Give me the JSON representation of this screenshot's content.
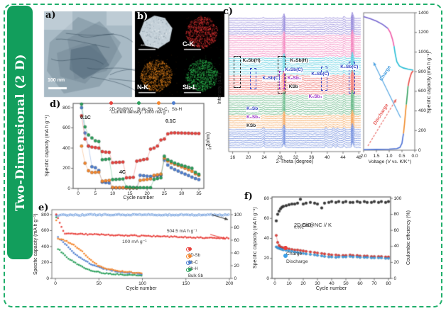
{
  "banner": {
    "text": "Two-Dimensional (2 D)"
  },
  "panel_labels": {
    "a": "a)",
    "b": "b)",
    "c": "c)",
    "d": "d)",
    "e": "e)",
    "f": "f)"
  },
  "panel_a": {
    "scalebar": "100 nm"
  },
  "panel_b": {
    "scalebar": "200 nm",
    "cells": [
      {
        "id": "sem-image",
        "label": "",
        "color": "#c5d1d9"
      },
      {
        "id": "carbon-map",
        "label": "C-K",
        "color": "#e23333"
      },
      {
        "id": "nitrogen-map",
        "label": "N-K",
        "color": "#e6841c"
      },
      {
        "id": "antimony-map",
        "label": "Sb-L",
        "color": "#2ec152"
      }
    ]
  },
  "chart_data": [
    {
      "id": "c-insitu-xrd",
      "type": "line",
      "xlabel": "2-Theta (degree)",
      "ylabel": "Intensity (a.u.)",
      "xlim": [
        15,
        48.5
      ],
      "x_ticks": [
        16,
        20,
        24,
        28,
        32,
        36,
        40,
        44,
        48
      ],
      "groups_top_to_bottom": [
        {
          "color": "#7464cf",
          "lines": 8
        },
        {
          "color": "#ef5aa8",
          "lines": 10
        },
        {
          "color": "#24bcd4",
          "lines": 8
        },
        {
          "color": "#e94b45",
          "lines": 9
        },
        {
          "color": "#33a05f",
          "lines": 9
        },
        {
          "color": "#f08a28",
          "lines": 6
        },
        {
          "color": "#4a6fd4",
          "lines": 9
        }
      ],
      "peak_positions_2theta": [
        23.8,
        29.0,
        30.8,
        32.4,
        33.8,
        39.7,
        41.6,
        42.6,
        44.3,
        46.4
      ],
      "phase_labels": [
        {
          "text": "K₃Sb(H)",
          "color": "#222222",
          "x": 10,
          "y": 33
        },
        {
          "text": "K₃Sb(C)",
          "color": "#3141c4",
          "x": 25,
          "y": 46
        },
        {
          "text": "K₃Sb(H)",
          "color": "#222222",
          "x": 46,
          "y": 33
        },
        {
          "text": "K₃Sb(C)",
          "color": "#3141c4",
          "x": 42,
          "y": 40
        },
        {
          "text": "K₅Sb₄",
          "color": "#9a30cc",
          "x": 44,
          "y": 46
        },
        {
          "text": "KSb",
          "color": "#222222",
          "x": 45,
          "y": 52
        },
        {
          "text": "K₃Sb(C)",
          "color": "#3141c4",
          "x": 62,
          "y": 43
        },
        {
          "text": "K₃Sb(C)",
          "color": "#3141c4",
          "x": 84,
          "y": 38
        },
        {
          "text": "K₅Sb₄",
          "color": "#9a30cc",
          "x": 60,
          "y": 59
        },
        {
          "text": "K₃Sb",
          "color": "#3141c4",
          "x": 13,
          "y": 68
        },
        {
          "text": "K₅Sb₄",
          "color": "#9a30cc",
          "x": 13,
          "y": 74
        },
        {
          "text": "KSb",
          "color": "#222222",
          "x": 13,
          "y": 80
        }
      ],
      "phase_boxes": [
        {
          "x": 4,
          "y": 31,
          "w": 4,
          "h": 22,
          "color": "#222222"
        },
        {
          "x": 16,
          "y": 40,
          "w": 4,
          "h": 14,
          "color": "#3141c4"
        },
        {
          "x": 37,
          "y": 31,
          "w": 5,
          "h": 26,
          "color": "#222222"
        },
        {
          "x": 38,
          "y": 42,
          "w": 3.5,
          "h": 12,
          "color": "#9a30cc"
        },
        {
          "x": 70,
          "y": 39,
          "w": 3.5,
          "h": 16,
          "color": "#3141c4"
        },
        {
          "x": 91,
          "y": 35,
          "w": 3.5,
          "h": 22,
          "color": "#3141c4"
        }
      ]
    },
    {
      "id": "c-voltage-profile",
      "type": "line",
      "xlabel": "Voltage (V vs. K/K⁺)",
      "ylabel_right": "Specific capacity (mA h g⁻¹)",
      "x_reversed": true,
      "x_tick_values": [
        2.0,
        1.5,
        1.0,
        0.5,
        0.0
      ],
      "x_tick_labels": [
        "2.0",
        "1.5",
        "1.0",
        "0.5",
        "0.0"
      ],
      "y_ticks": [
        0,
        200,
        400,
        600,
        800,
        1000,
        1200,
        1400
      ],
      "charge_label": "Charge",
      "discharge_label": "Discharge",
      "charge_color": "#4aa0e0",
      "discharge_color": "#e8635f",
      "discharge_segments": [
        {
          "color": "#4a6fd4",
          "points": [
            [
              2.0,
              5
            ],
            [
              1.5,
              8
            ],
            [
              1.0,
              11
            ],
            [
              0.7,
              16
            ],
            [
              0.58,
              28
            ],
            [
              0.5,
              70
            ],
            [
              0.46,
              140
            ],
            [
              0.44,
              170
            ]
          ]
        },
        {
          "color": "#f08a28",
          "points": [
            [
              0.44,
              170
            ],
            [
              0.4,
              270
            ],
            [
              0.36,
              390
            ],
            [
              0.33,
              465
            ]
          ]
        },
        {
          "color": "#33a05f",
          "points": [
            [
              0.33,
              465
            ],
            [
              0.29,
              570
            ],
            [
              0.26,
              655
            ]
          ]
        },
        {
          "color": "#e94b45",
          "points": [
            [
              0.26,
              655
            ],
            [
              0.2,
              730
            ],
            [
              0.13,
              785
            ],
            [
              0.06,
              810
            ]
          ]
        }
      ],
      "charge_segments": [
        {
          "color": "#24bcd4",
          "points": [
            [
              0.06,
              815
            ],
            [
              0.25,
              825
            ],
            [
              0.45,
              838
            ],
            [
              0.6,
              858
            ],
            [
              0.7,
              900
            ],
            [
              0.77,
              990
            ],
            [
              0.81,
              1060
            ]
          ]
        },
        {
          "color": "#ef5aa8",
          "points": [
            [
              0.81,
              1060
            ],
            [
              0.87,
              1130
            ],
            [
              0.95,
              1195
            ],
            [
              1.05,
              1240
            ]
          ]
        },
        {
          "color": "#7464cf",
          "points": [
            [
              1.05,
              1240
            ],
            [
              1.25,
              1280
            ],
            [
              1.5,
              1315
            ],
            [
              1.75,
              1340
            ],
            [
              2.0,
              1360
            ]
          ]
        }
      ]
    },
    {
      "id": "d-rate-capability",
      "type": "scatter",
      "xlabel": "Cycle number",
      "ylabel": "Specific capacity (mA h g⁻¹)",
      "ylabel_right": {
        "pre": "- Z",
        "sub": "im",
        "post": " (ohm)"
      },
      "x_ticks": [
        0,
        5,
        10,
        15,
        20,
        25,
        30,
        35
      ],
      "y_ticks": [
        0,
        200,
        400,
        600,
        800
      ],
      "note": "Current density: 1000 mA g⁻¹",
      "annotations": [
        "0.1C",
        "4C",
        "0.1C"
      ],
      "series": [
        {
          "name": "2D-Sb@NC",
          "color": "#e8413c",
          "y": [
            720,
            490,
            420,
            410,
            405,
            400,
            365,
            360,
            358,
            255,
            258,
            260,
            262,
            105,
            107,
            110,
            270,
            278,
            286,
            292,
            390,
            400,
            420,
            480,
            490,
            540,
            550,
            551,
            550,
            549,
            548,
            547,
            546,
            545,
            544
          ]
        },
        {
          "name": "Bulk-Sb",
          "color": "#2ba05c",
          "y": [
            835,
            610,
            530,
            500,
            472,
            465,
            285,
            288,
            292,
            88,
            90,
            92,
            94,
            15,
            12,
            10,
            8,
            8,
            8,
            8,
            8,
            90,
            98,
            105,
            320,
            285,
            268,
            252,
            240,
            230,
            220,
            210,
            200,
            160,
            140
          ]
        },
        {
          "name": "Sb-C",
          "color": "#f5862c",
          "y": [
            420,
            250,
            175,
            158,
            160,
            162,
            72,
            76,
            80,
            10,
            8,
            8,
            8,
            5,
            5,
            5,
            5,
            80,
            85,
            90,
            95,
            130,
            136,
            142,
            300,
            272,
            252,
            240,
            228,
            214,
            200,
            186,
            170,
            145,
            130
          ]
        },
        {
          "name": "Sb-H",
          "color": "#4f7fd0",
          "y": [
            800,
            550,
            420,
            215,
            205,
            178,
            62,
            58,
            54,
            8,
            6,
            6,
            6,
            5,
            5,
            5,
            5,
            130,
            126,
            122,
            120,
            122,
            126,
            132,
            280,
            232,
            205,
            188,
            172,
            156,
            142,
            128,
            112,
            98,
            88
          ]
        }
      ]
    },
    {
      "id": "e-long-cycling",
      "type": "scatter",
      "xlabel": "Cycle number",
      "ylabel": "Specific capacity (mA h g⁻¹)",
      "x_ticks": [
        0,
        50,
        100,
        150,
        200
      ],
      "y_ticks": [
        0,
        200,
        400,
        600,
        800
      ],
      "right_ticks": [
        0,
        20,
        40,
        60,
        80,
        100
      ],
      "note": "100 mA g⁻¹",
      "annotation": "504.5 mA h g⁻¹",
      "series": [
        {
          "name": "2D-Sb",
          "color": "#e8413c",
          "x": [
            1,
            10,
            20,
            30,
            40,
            50,
            60,
            70,
            80,
            90,
            100,
            110,
            120,
            130,
            140,
            150,
            160,
            170,
            180,
            190,
            200
          ],
          "y": [
            810,
            562,
            558,
            555,
            552,
            549,
            546,
            543,
            540,
            537,
            534,
            531,
            528,
            524,
            521,
            518,
            514,
            511,
            508,
            506,
            504.5
          ]
        },
        {
          "name": "Sb-C",
          "color": "#f5862c",
          "x": [
            1,
            2,
            5,
            10,
            15,
            20,
            25,
            30,
            35,
            40,
            45,
            50,
            60,
            70,
            80,
            90,
            100
          ],
          "y": [
            730,
            508,
            498,
            478,
            455,
            432,
            390,
            345,
            290,
            235,
            190,
            158,
            120,
            96,
            82,
            74,
            68
          ]
        },
        {
          "name": "Sb-H",
          "color": "#4f7fd0",
          "x": [
            1,
            2,
            5,
            10,
            15,
            20,
            25,
            30,
            35,
            40,
            45,
            50,
            60,
            70,
            80,
            90,
            100
          ],
          "y": [
            798,
            522,
            495,
            448,
            392,
            335,
            288,
            248,
            215,
            185,
            160,
            140,
            110,
            92,
            78,
            66,
            56
          ]
        },
        {
          "name": "Bulk-Sb",
          "color": "#2ba05c",
          "x": [
            1,
            2,
            5,
            10,
            15,
            20,
            25,
            30,
            35,
            40,
            45,
            50,
            60,
            70,
            80,
            90,
            100
          ],
          "y": [
            762,
            382,
            352,
            298,
            252,
            212,
            178,
            148,
            122,
            102,
            88,
            78,
            62,
            52,
            46,
            42,
            40
          ]
        },
        {
          "name": "coulombic-efficiency",
          "color": "#5b8fd8",
          "axis": "right",
          "open": true,
          "x": [
            1,
            10,
            20,
            30,
            40,
            50,
            60,
            70,
            80,
            90,
            100,
            110,
            120,
            130,
            140,
            150,
            160,
            170,
            180,
            190,
            200
          ],
          "y": [
            98.5,
            99.6,
            99.8,
            99.5,
            99.9,
            99.7,
            99.8,
            100,
            99.6,
            99.8,
            99.9,
            99.7,
            99.8,
            99.6,
            99.9,
            99.8,
            99.7,
            99.9,
            99.8,
            99.7,
            99.8
          ]
        }
      ]
    },
    {
      "id": "f-full-cell",
      "type": "scatter",
      "title": {
        "pre": "2D-Sb@NC // K",
        "sub": "0.69",
        "mid": "CrO",
        "sub2": "2"
      },
      "xlabel": "Cycle number",
      "ylabel": "Specific capacity (mA h g⁻¹)",
      "ylabel_right": "Coulombic efficiency (%)",
      "x_ticks": [
        0,
        10,
        20,
        30,
        40,
        50,
        60,
        70,
        80
      ],
      "y_ticks": [
        0,
        20,
        40,
        60,
        80
      ],
      "right_ticks": [
        0,
        20,
        40,
        60,
        80,
        100
      ],
      "x_shared": [
        1,
        2,
        3,
        4,
        5,
        6,
        8,
        10,
        12,
        14,
        16,
        18,
        20,
        22,
        25,
        28,
        30,
        33,
        35,
        38,
        40,
        43,
        45,
        48,
        50,
        53,
        55,
        58,
        60,
        63,
        65,
        68,
        70,
        73,
        75,
        78,
        80
      ],
      "series": [
        {
          "name": "Charge",
          "color": "#e8413c",
          "y": [
            43,
            36,
            33,
            31.5,
            31,
            30.5,
            30,
            29.5,
            29,
            28.5,
            28.5,
            28,
            27.5,
            27,
            26.5,
            26,
            25.5,
            25,
            24.5,
            24,
            23.5,
            23.5,
            23,
            23,
            23,
            23.5,
            23,
            23,
            22.5,
            22.5,
            22.5,
            22,
            22,
            22,
            22,
            21.5,
            21.5
          ]
        },
        {
          "name": "Discharge",
          "color": "#3da0e8",
          "y": [
            31.5,
            30.5,
            30,
            29.5,
            29,
            28.5,
            28,
            27.5,
            27,
            26.5,
            26,
            25.5,
            25,
            24.5,
            24,
            23.5,
            23,
            22.5,
            22,
            21.5,
            21.5,
            21,
            21.5,
            21.5,
            21.5,
            22,
            21.5,
            21.5,
            21,
            21,
            21,
            20.5,
            20.5,
            20.5,
            20.5,
            20,
            20
          ]
        },
        {
          "name": "coulombic-efficiency",
          "color": "#3a3a3a",
          "axis": "right",
          "y": [
            72,
            80,
            84,
            87,
            89,
            90,
            91,
            92,
            93,
            93,
            94,
            99,
            93,
            94,
            95,
            94,
            93,
            88,
            94,
            95,
            96,
            95,
            96,
            95,
            96,
            95,
            95,
            96,
            95,
            96,
            95,
            95,
            96,
            95,
            96,
            95,
            96
          ]
        }
      ]
    }
  ]
}
